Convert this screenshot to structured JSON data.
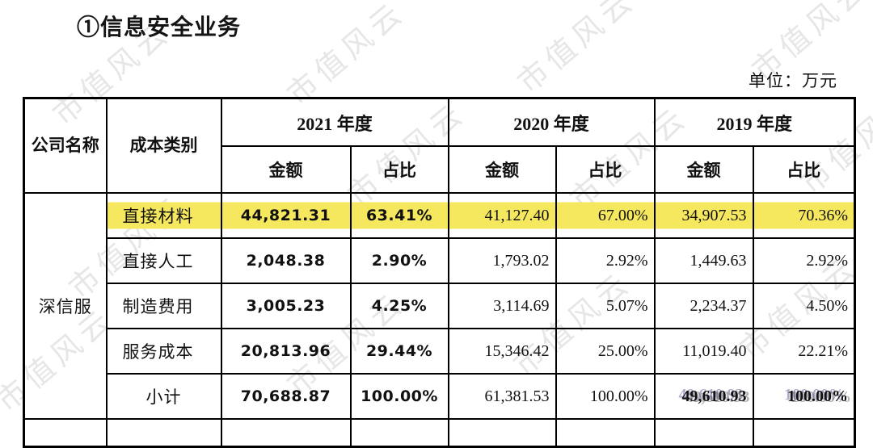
{
  "page": {
    "title": "①信息安全业务",
    "unit_label": "单位：万元",
    "watermark_text": "市值风云"
  },
  "table": {
    "header": {
      "company_label": "公司名称",
      "category_label": "成本类别",
      "years": [
        {
          "label": "2021 年度"
        },
        {
          "label": "2020 年度"
        },
        {
          "label": "2019 年度"
        }
      ],
      "amount_label": "金额",
      "ratio_label": "占比"
    },
    "company": "深信服",
    "highlight_color": "#f6e85e",
    "rows": [
      {
        "category": "直接材料",
        "a2021": "44,821.31",
        "r2021": "63.41%",
        "a2020": "41,127.40",
        "r2020": "67.00%",
        "a2019": "34,907.53",
        "r2019": "70.36%"
      },
      {
        "category": "直接人工",
        "a2021": "2,048.38",
        "r2021": "2.90%",
        "a2020": "1,793.02",
        "r2020": "2.92%",
        "a2019": "1,449.63",
        "r2019": "2.92%"
      },
      {
        "category": "制造费用",
        "a2021": "3,005.23",
        "r2021": "4.25%",
        "a2020": "3,114.69",
        "r2020": "5.07%",
        "a2019": "2,234.37",
        "r2019": "4.50%"
      },
      {
        "category": "服务成本",
        "a2021": "20,813.96",
        "r2021": "29.44%",
        "a2020": "15,346.42",
        "r2020": "25.00%",
        "a2019": "11,019.40",
        "r2019": "22.21%"
      },
      {
        "category": "小计",
        "a2021": "70,688.87",
        "r2021": "100.00%",
        "a2020": "61,381.53",
        "r2020": "100.00%",
        "a2019": "49,610.93",
        "r2019": "100.00%"
      }
    ]
  }
}
